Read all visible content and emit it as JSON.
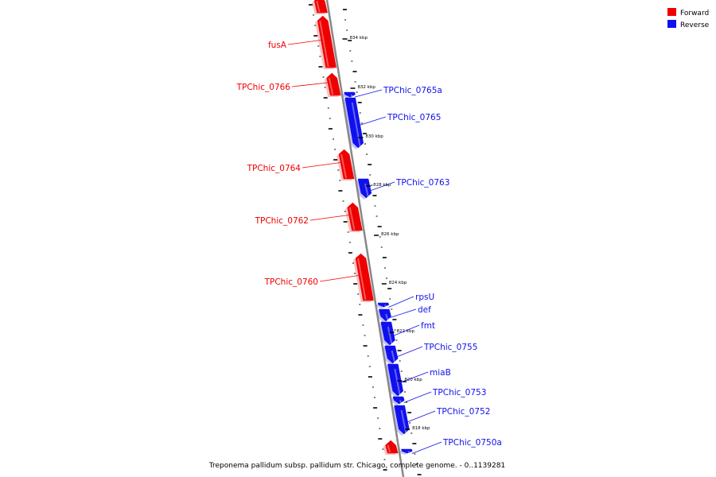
{
  "caption": "Treponema pallidum subsp. pallidum str. Chicago, complete genome. - 0..1139281",
  "colors": {
    "forward": "#ee0000",
    "reverse": "#1010ee",
    "backbone": "#888888",
    "tick": "#000000"
  },
  "legend": [
    {
      "label": "Forward",
      "color": "#ee0000"
    },
    {
      "label": "Reverse",
      "color": "#1010ee"
    }
  ],
  "scale_labels": [
    "834 kbp",
    "832 kbp",
    "830 kbp",
    "828 kbp",
    "826 kbp",
    "824 kbp",
    "822 kbp",
    "820 kbp",
    "818 kbp"
  ],
  "genes": [
    {
      "name": "",
      "strand": "forward"
    },
    {
      "name": "fusA",
      "strand": "forward"
    },
    {
      "name": "TPChic_0766",
      "strand": "forward"
    },
    {
      "name": "TPChic_0765a",
      "strand": "reverse"
    },
    {
      "name": "TPChic_0765",
      "strand": "reverse"
    },
    {
      "name": "TPChic_0764",
      "strand": "forward"
    },
    {
      "name": "TPChic_0763",
      "strand": "reverse"
    },
    {
      "name": "TPChic_0762",
      "strand": "forward"
    },
    {
      "name": "TPChic_0760",
      "strand": "forward"
    },
    {
      "name": "rpsU",
      "strand": "reverse"
    },
    {
      "name": "def",
      "strand": "reverse"
    },
    {
      "name": "fmt",
      "strand": "reverse"
    },
    {
      "name": "TPChic_0755",
      "strand": "reverse"
    },
    {
      "name": "miaB",
      "strand": "reverse"
    },
    {
      "name": "TPChic_0753",
      "strand": "reverse"
    },
    {
      "name": "TPChic_0752",
      "strand": "reverse"
    },
    {
      "name": "TPChic_0750a",
      "strand": "reverse"
    },
    {
      "name": "",
      "strand": "forward"
    }
  ]
}
